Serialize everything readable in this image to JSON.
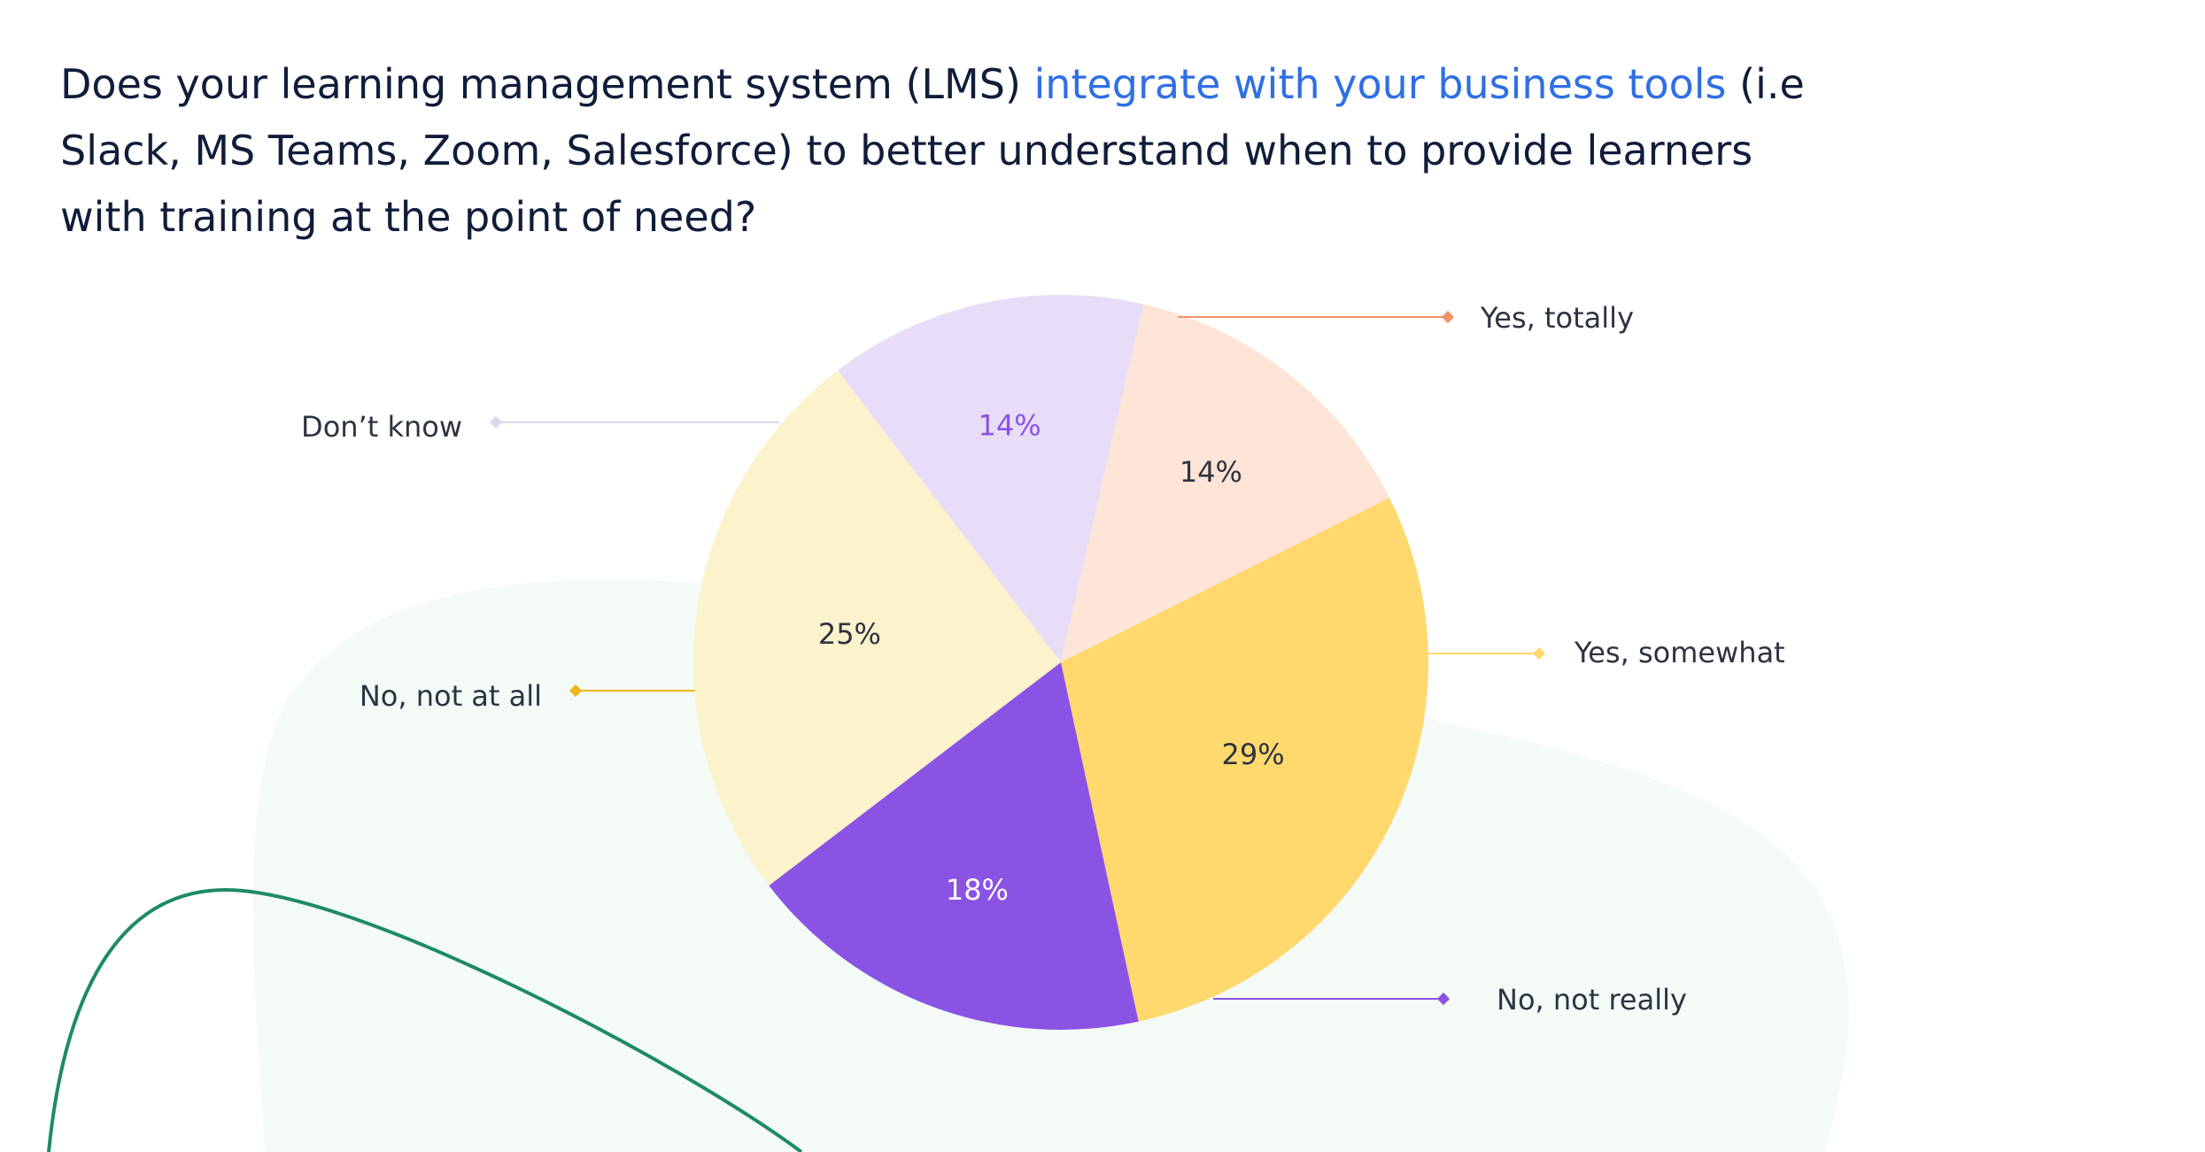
{
  "question": {
    "before": "Does your learning management system (LMS) ",
    "highlight": "integrate with your business tools",
    "after": " (i.e Slack, MS Teams, Zoom, Salesforce) to better understand when to provide learners with training at the point of need?"
  },
  "colors": {
    "title": "#0f1d3a",
    "highlight": "#2f6fe4",
    "background_blob": "#f4faf6",
    "decorative_curve": "#1e8a66"
  },
  "chart_data": {
    "type": "pie",
    "title": "",
    "legend": "callout labels",
    "start_angle_deg": 13,
    "direction": "clockwise",
    "slices": [
      {
        "label": "Yes, totally",
        "value": 14,
        "display": "14%",
        "color": "#fee4d6",
        "text_color": "#2d3340",
        "leader_color": "#f0936a"
      },
      {
        "label": "Yes, somewhat",
        "value": 29,
        "display": "29%",
        "color": "#ffd86e",
        "text_color": "#2d3340",
        "leader_color": "#ffd86e"
      },
      {
        "label": "No, not really",
        "value": 18,
        "display": "18%",
        "color": "#8b53e4",
        "text_color": "#ffffff",
        "leader_color": "#8b53e4"
      },
      {
        "label": "No, not at all",
        "value": 25,
        "display": "25%",
        "color": "#fcf2cc",
        "text_color": "#2d3340",
        "leader_color": "#f2b51c"
      },
      {
        "label": "Don’t know",
        "value": 14,
        "display": "14%",
        "color": "#e7ddf8",
        "text_color": "#8b53e4",
        "leader_color": "#ddd6ee"
      }
    ]
  }
}
